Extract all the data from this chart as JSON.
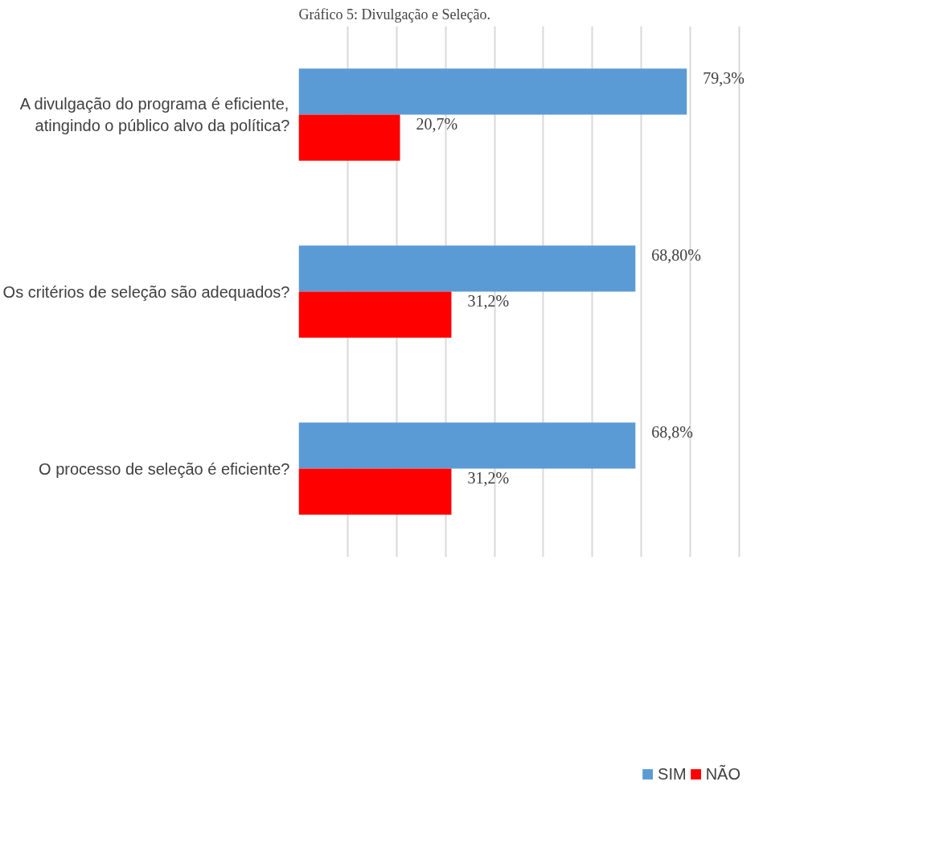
{
  "chart_data": {
    "type": "bar",
    "orientation": "horizontal",
    "title": "Gráfico 5: Divulgação e Seleção.",
    "categories": [
      "A divulgação do programa é eficiente,\natingindo o público alvo da política?",
      "Os critérios de seleção são adequados?",
      "O processo de seleção é eficiente?"
    ],
    "series": [
      {
        "name": "SIM",
        "color": "#5b9bd5",
        "values": [
          79.3,
          68.8,
          68.8
        ],
        "value_labels": [
          "79,3%",
          "68,80%",
          "68,8%"
        ]
      },
      {
        "name": "NÃO",
        "color": "#ff0000",
        "values": [
          20.7,
          31.2,
          31.2
        ],
        "value_labels": [
          "20,7%",
          "31,2%",
          "31,2%"
        ]
      }
    ],
    "grid": "x",
    "legend": "bottom",
    "tick_labels": "y"
  }
}
